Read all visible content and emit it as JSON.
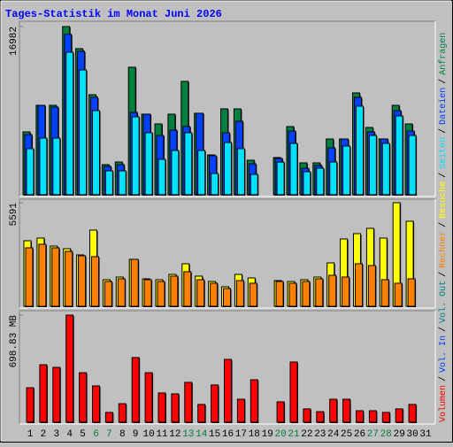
{
  "title": "Tages-Statistik im Monat Juni 2026",
  "categories": [
    "1",
    "2",
    "3",
    "4",
    "5",
    "6",
    "7",
    "8",
    "9",
    "10",
    "11",
    "12",
    "13",
    "14",
    "15",
    "16",
    "17",
    "18",
    "19",
    "20",
    "21",
    "22",
    "23",
    "24",
    "25",
    "26",
    "27",
    "28",
    "29",
    "30",
    "31"
  ],
  "category_colors": [
    "#000000",
    "#000000",
    "#000000",
    "#000000",
    "#000000",
    "#008040",
    "#008040",
    "#000000",
    "#000000",
    "#000000",
    "#000000",
    "#000000",
    "#008040",
    "#008040",
    "#000000",
    "#000000",
    "#000000",
    "#000000",
    "#000000",
    "#008040",
    "#008040",
    "#000000",
    "#000000",
    "#000000",
    "#000000",
    "#000000",
    "#008040",
    "#008040",
    "#000000",
    "#000000",
    "#000000"
  ],
  "separator": "/",
  "chart_data": [
    {
      "type": "bar",
      "ylim": [
        0,
        16982
      ],
      "yticks": [
        16982
      ],
      "series": [
        {
          "name": "Anfragen",
          "color": "#008040",
          "values": [
            6347,
            9029,
            9029,
            16982,
            14751,
            10102,
            3040,
            3308,
            12874,
            8135,
            7152,
            8135,
            11443,
            8225,
            4023,
            8672,
            8672,
            3487,
            null,
            3755,
            6884,
            3218,
            3218,
            5632,
            5632,
            10281,
            6794,
            5632,
            9029,
            7152,
            null
          ]
        },
        {
          "name": "Dateien",
          "color": "#0040ff",
          "values": [
            6079,
            9029,
            8851,
            16200,
            14483,
            9834,
            2861,
            3040,
            8314,
            8135,
            5990,
            6526,
            6884,
            8225,
            3934,
            6258,
            7420,
            3129,
            null,
            3666,
            6437,
            2682,
            2950,
            4738,
            5632,
            9834,
            6347,
            5632,
            8493,
            6437,
            null
          ]
        },
        {
          "name": "Seiten",
          "color": "#00e0ff",
          "values": [
            4649,
            5722,
            5722,
            14393,
            12605,
            8493,
            2414,
            2414,
            7867,
            6258,
            3576,
            4470,
            6258,
            4470,
            2146,
            5275,
            4649,
            2056,
            null,
            3300,
            5185,
            2324,
            2682,
            3308,
            4917,
            8940,
            5990,
            5185,
            7957,
            5990,
            null
          ]
        }
      ]
    },
    {
      "type": "bar",
      "ylim": [
        0,
        5591
      ],
      "yticks": [
        5591
      ],
      "series": [
        {
          "name": "Besuche",
          "color": "#ffff00",
          "values": [
            3537,
            3681,
            3250,
            3107,
            2772,
            4111,
            1434,
            1577,
            2533,
            1482,
            1434,
            1721,
            2294,
            1625,
            1338,
            1052,
            1721,
            1530,
            null,
            1386,
            1338,
            1434,
            1577,
            2342,
            3633,
            3920,
            4206,
            3681,
            5591,
            4589,
            null
          ]
        },
        {
          "name": "Rechner",
          "color": "#ff8000",
          "values": [
            3155,
            3346,
            3155,
            2964,
            2725,
            2677,
            1338,
            1482,
            2533,
            1434,
            1338,
            1625,
            1864,
            1434,
            1243,
            956,
            1386,
            1243,
            null,
            1338,
            1243,
            1338,
            1482,
            1673,
            1577,
            2294,
            2199,
            1434,
            1243,
            1482,
            null
          ]
        }
      ]
    },
    {
      "type": "bar",
      "ylim": [
        0,
        698.83
      ],
      "yticks": [
        {
          "value": 698.83,
          "label": "698.83 MB"
        }
      ],
      "legend_only": [
        {
          "name": "Vol. Out",
          "color": "#008080"
        },
        {
          "name": "Vol. In",
          "color": "#0040ff"
        }
      ],
      "series": [
        {
          "name": "Volumen",
          "color": "#ff0000",
          "values": [
            225,
            375,
            358,
            698.83,
            323,
            237,
            64,
            121,
            422,
            323,
            191,
            185,
            260,
            116,
            243,
            410,
            150,
            277,
            null,
            133,
            393,
            87,
            69,
            150,
            150,
            75,
            75,
            64,
            87,
            116,
            null
          ]
        }
      ]
    }
  ]
}
